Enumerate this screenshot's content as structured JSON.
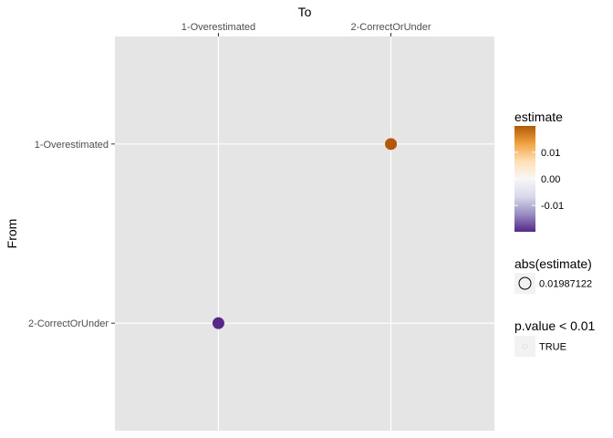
{
  "chart_data": {
    "type": "scatter",
    "title": "",
    "xlabel": "To",
    "ylabel": "From",
    "x_categories": [
      "1-Overestimated",
      "2-CorrectOrUnder"
    ],
    "y_categories": [
      "1-Overestimated",
      "2-CorrectOrUnder"
    ],
    "grid": true,
    "points": [
      {
        "x": "2-CorrectOrUnder",
        "y": "1-Overestimated",
        "estimate": 0.01987122,
        "color": "#b35806"
      },
      {
        "x": "1-Overestimated",
        "y": "2-CorrectOrUnder",
        "estimate": -0.01987122,
        "color": "#542788"
      }
    ],
    "legend_placement": "right",
    "legends": {
      "color": {
        "title": "estimate",
        "breaks": [
          0.01,
          0.0,
          -0.01
        ],
        "labels": [
          "0.01",
          "0.00",
          "-0.01"
        ],
        "limits": [
          -0.01987122,
          0.01987122
        ],
        "gradient": [
          "#b35806",
          "#f1a340",
          "#fee0b6",
          "#f7f7f7",
          "#d8daeb",
          "#998ec3",
          "#542788"
        ]
      },
      "size": {
        "title": "abs(estimate)",
        "label": "0.01987122"
      },
      "alpha": {
        "title": "p.value < 0.01",
        "label": "TRUE"
      }
    },
    "colors": {
      "panel_background": "#e5e5e5",
      "grid": "#ffffff",
      "tick_text": "#4d4d4d"
    }
  }
}
